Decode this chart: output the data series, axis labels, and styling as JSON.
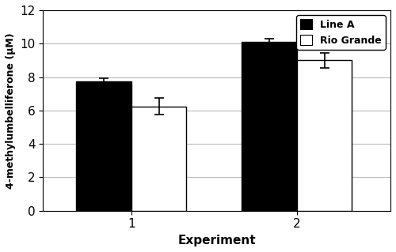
{
  "experiments": [
    "1",
    "2"
  ],
  "line_a_values": [
    7.75,
    10.1
  ],
  "line_a_errors": [
    0.18,
    0.2
  ],
  "rio_grande_values": [
    6.25,
    9.0
  ],
  "rio_grande_errors": [
    0.5,
    0.45
  ],
  "bar_width": 0.5,
  "group_positions": [
    1.0,
    2.5
  ],
  "ylim": [
    0,
    12
  ],
  "yticks": [
    0,
    2,
    4,
    6,
    8,
    10,
    12
  ],
  "xlabel": "Experiment",
  "ylabel": "4-methylumbelliferone (µM)",
  "legend_labels": [
    "Line A",
    "Rio Grande"
  ],
  "bar_colors": [
    "#000000",
    "#ffffff"
  ],
  "bar_edgecolors": [
    "#000000",
    "#000000"
  ],
  "error_capsize": 4,
  "error_color": "black",
  "background_color": "#ffffff",
  "grid_color": "#bbbbbb",
  "title": ""
}
